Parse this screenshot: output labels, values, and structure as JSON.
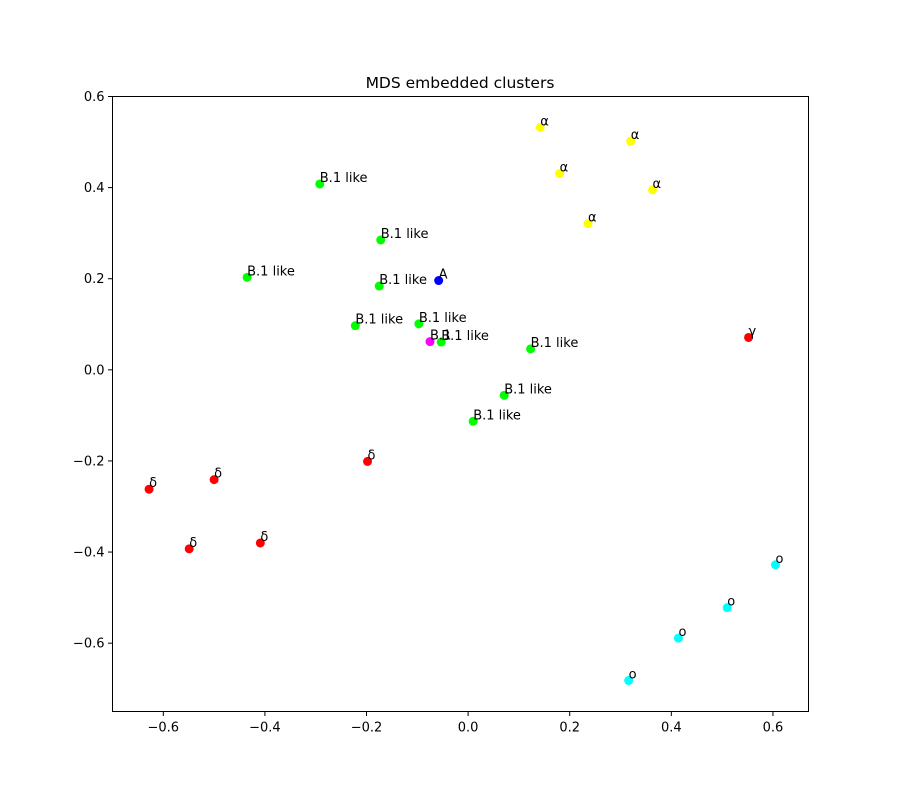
{
  "chart_data": {
    "type": "scatter",
    "title": "MDS embedded clusters",
    "xlabel": "",
    "ylabel": "",
    "xlim": [
      -0.7,
      0.67
    ],
    "ylim": [
      -0.75,
      0.6
    ],
    "xticks": [
      -0.6,
      -0.4,
      -0.2,
      0.0,
      0.2,
      0.4,
      0.6
    ],
    "xtick_labels": [
      "−0.6",
      "−0.4",
      "−0.2",
      "0.0",
      "0.2",
      "0.4",
      "0.6"
    ],
    "yticks": [
      -0.6,
      -0.4,
      -0.2,
      0.0,
      0.2,
      0.4,
      0.6
    ],
    "ytick_labels": [
      "−0.6",
      "−0.4",
      "−0.2",
      "0.0",
      "0.2",
      "0.4",
      "0.6"
    ],
    "grid": false,
    "colors": {
      "alpha": "#ffff00",
      "b1like": "#00ff00",
      "A": "#0000ff",
      "B1": "#ff00ff",
      "gamma": "#ff0000",
      "delta": "#ff0000",
      "omicron": "#00ffff"
    },
    "points": [
      {
        "x": 0.142,
        "y": 0.532,
        "label": "α",
        "group": "alpha"
      },
      {
        "x": 0.32,
        "y": 0.502,
        "label": "α",
        "group": "alpha"
      },
      {
        "x": 0.18,
        "y": 0.431,
        "label": "α",
        "group": "alpha"
      },
      {
        "x": 0.363,
        "y": 0.395,
        "label": "α",
        "group": "alpha"
      },
      {
        "x": 0.236,
        "y": 0.321,
        "label": "α",
        "group": "alpha"
      },
      {
        "x": -0.292,
        "y": 0.408,
        "label": "B.1 like",
        "group": "b1like"
      },
      {
        "x": -0.172,
        "y": 0.285,
        "label": "B.1 like",
        "group": "b1like"
      },
      {
        "x": -0.435,
        "y": 0.203,
        "label": "B.1 like",
        "group": "b1like"
      },
      {
        "x": -0.175,
        "y": 0.184,
        "label": "B.1 like",
        "group": "b1like"
      },
      {
        "x": -0.222,
        "y": 0.097,
        "label": "B.1 like",
        "group": "b1like"
      },
      {
        "x": -0.097,
        "y": 0.101,
        "label": "B.1 like",
        "group": "b1like"
      },
      {
        "x": -0.053,
        "y": 0.061,
        "label": "B.1 like",
        "group": "b1like"
      },
      {
        "x": 0.123,
        "y": 0.046,
        "label": "B.1 like",
        "group": "b1like"
      },
      {
        "x": 0.071,
        "y": -0.056,
        "label": "B.1 like",
        "group": "b1like"
      },
      {
        "x": 0.01,
        "y": -0.113,
        "label": "B.1 like",
        "group": "b1like"
      },
      {
        "x": -0.058,
        "y": 0.196,
        "label": "A",
        "group": "A"
      },
      {
        "x": -0.075,
        "y": 0.062,
        "label": "B.1",
        "group": "B1"
      },
      {
        "x": 0.552,
        "y": 0.071,
        "label": "γ",
        "group": "gamma"
      },
      {
        "x": -0.198,
        "y": -0.201,
        "label": "δ",
        "group": "delta"
      },
      {
        "x": -0.5,
        "y": -0.241,
        "label": "δ",
        "group": "delta"
      },
      {
        "x": -0.628,
        "y": -0.262,
        "label": "δ",
        "group": "delta"
      },
      {
        "x": -0.409,
        "y": -0.38,
        "label": "δ",
        "group": "delta"
      },
      {
        "x": -0.549,
        "y": -0.393,
        "label": "δ",
        "group": "delta"
      },
      {
        "x": 0.605,
        "y": -0.428,
        "label": "o",
        "group": "omicron"
      },
      {
        "x": 0.51,
        "y": -0.522,
        "label": "o",
        "group": "omicron"
      },
      {
        "x": 0.414,
        "y": -0.589,
        "label": "o",
        "group": "omicron"
      },
      {
        "x": 0.316,
        "y": -0.682,
        "label": "o",
        "group": "omicron"
      }
    ]
  }
}
